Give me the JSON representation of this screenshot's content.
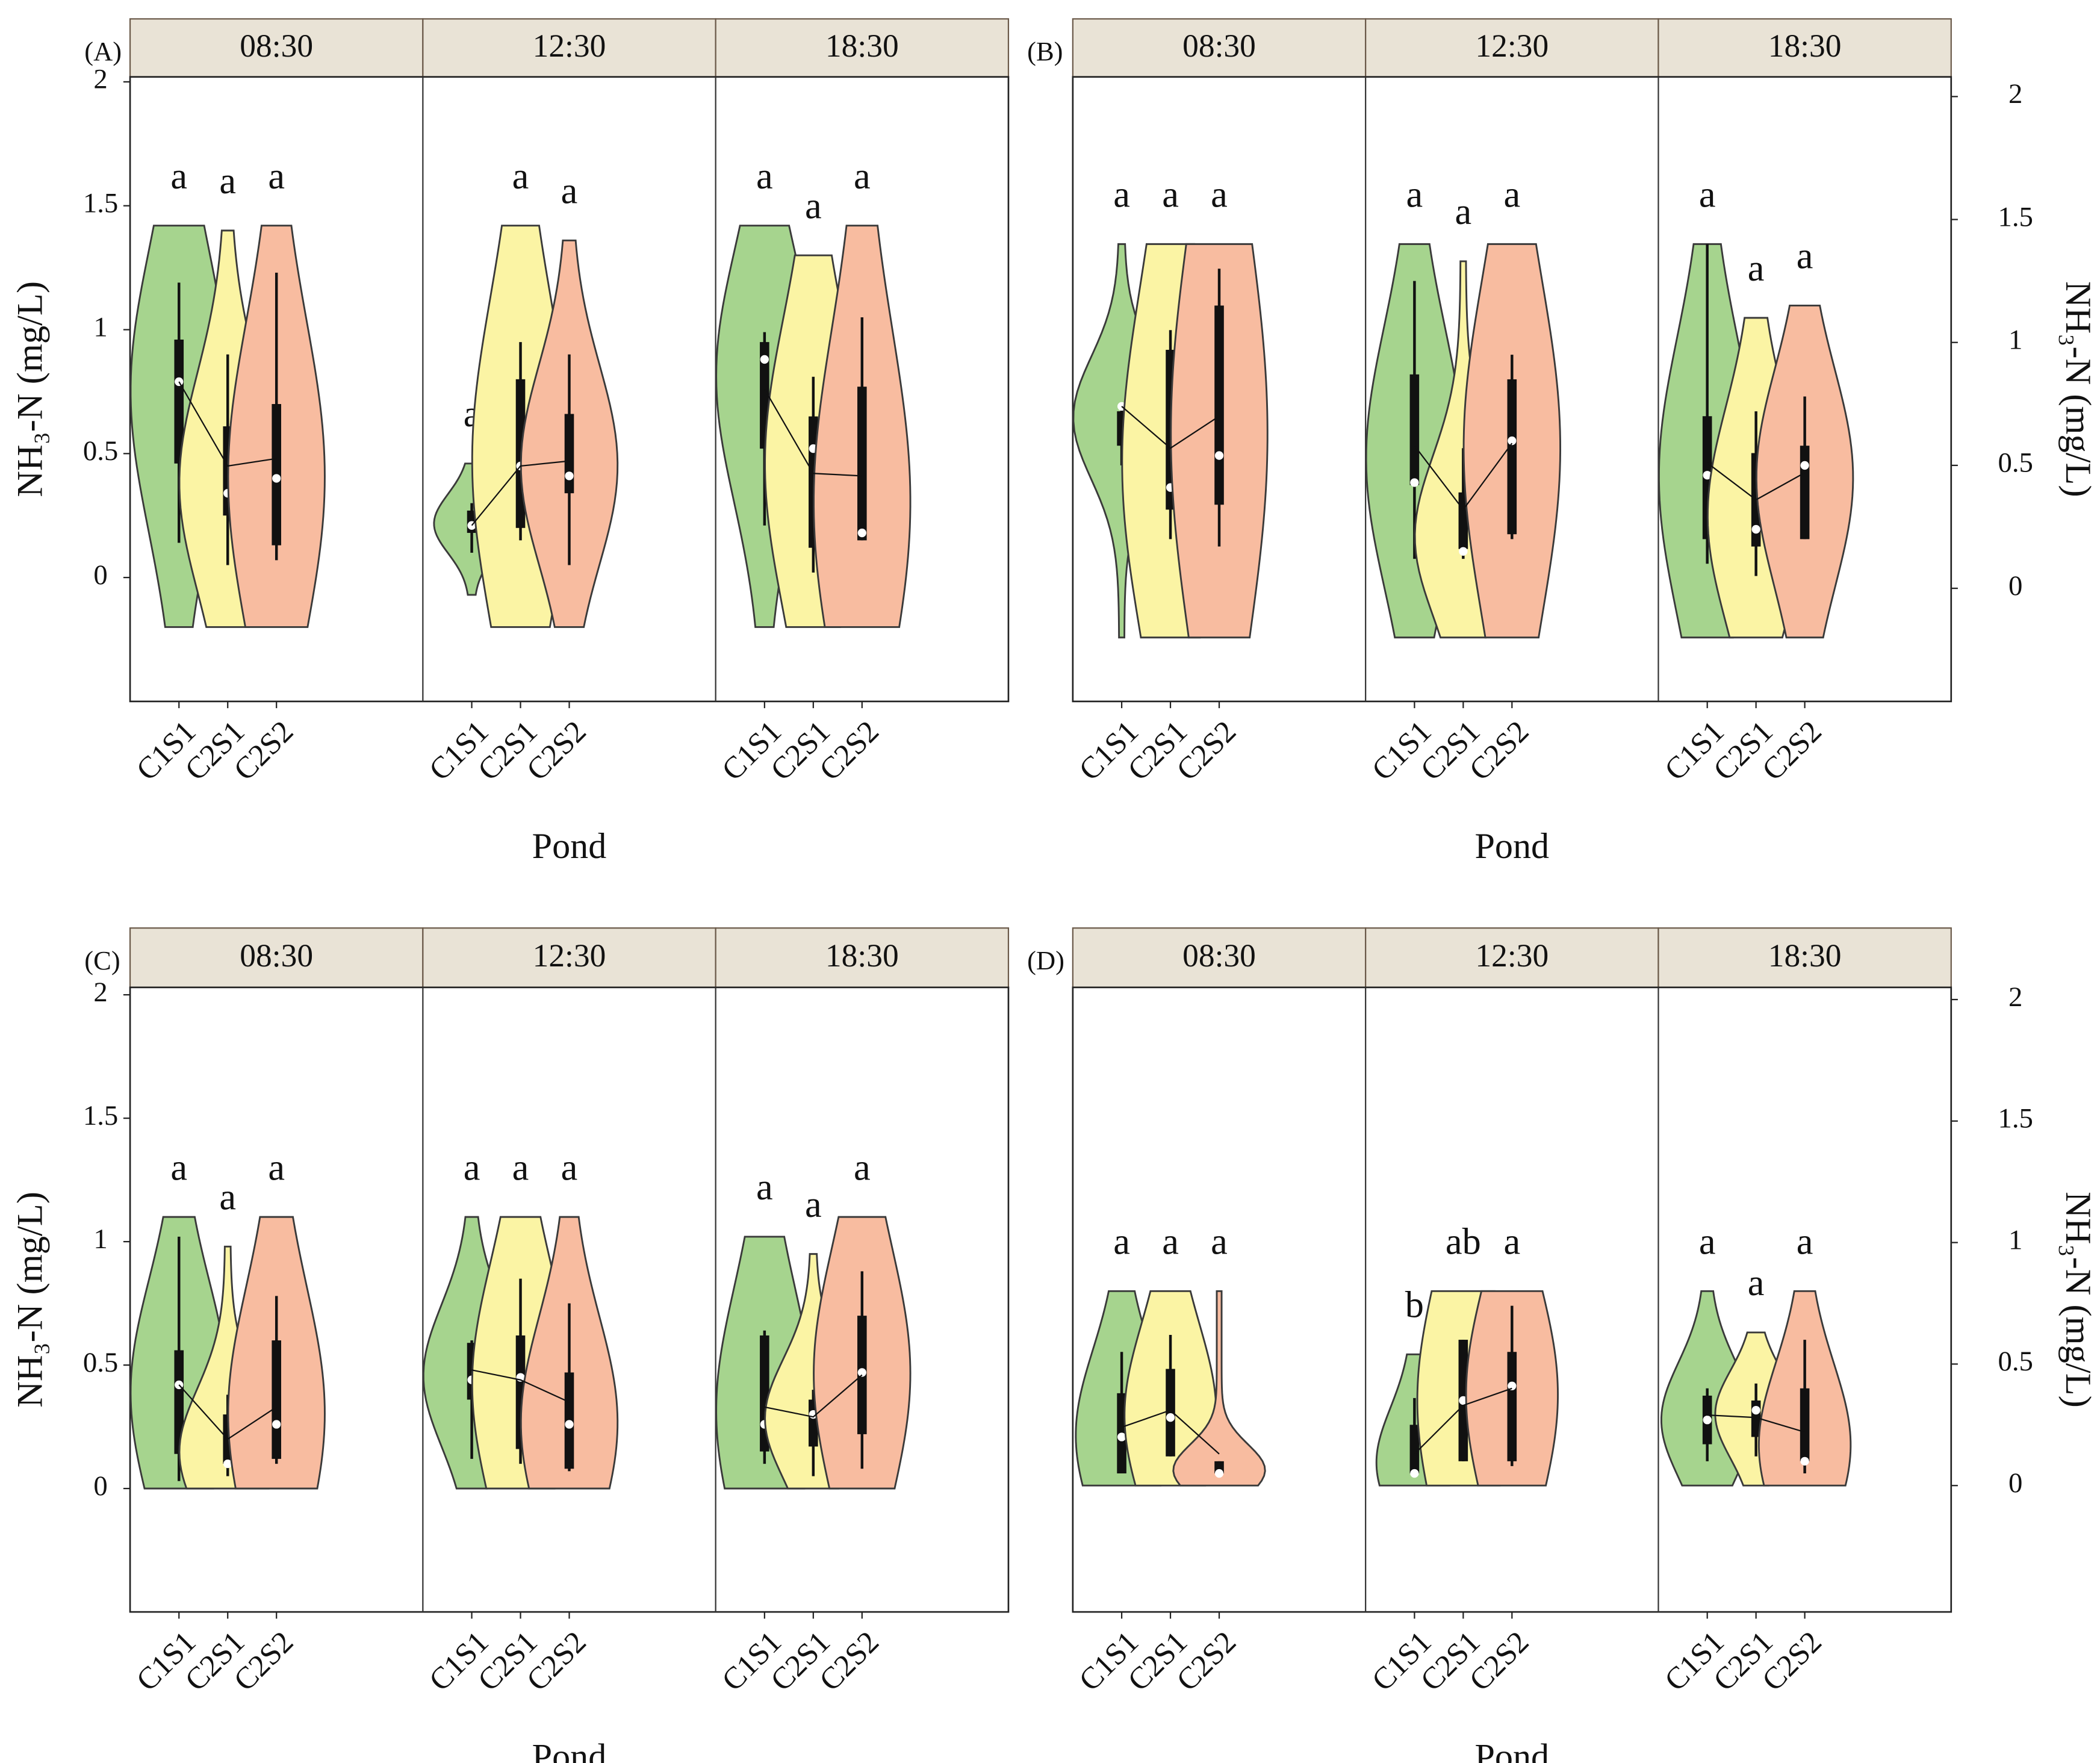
{
  "chart_data": [
    {
      "type": "violin",
      "panel_label": "(A)",
      "xlabel": "Pond",
      "ylabel": "NH₃-N (mg/L)",
      "y_axis_side": "left",
      "categories": [
        "C1S1",
        "C2S1",
        "C2S2"
      ],
      "colors": [
        "#a6d48e",
        "#fbf4a4",
        "#f8bca0"
      ],
      "ylim": [
        -0.5,
        2.02
      ],
      "yticks": [
        0,
        0.5,
        1,
        1.5,
        2
      ],
      "groups": [
        {
          "name": "08:30",
          "violins": [
            {
              "range": [
                -0.2,
                1.42
              ],
              "whisker": [
                0.14,
                1.19
              ],
              "box": [
                0.46,
                0.96
              ],
              "median": 0.79,
              "mean": 0.79,
              "label": "a"
            },
            {
              "range": [
                -0.2,
                1.4
              ],
              "whisker": [
                0.05,
                0.9
              ],
              "box": [
                0.25,
                0.61
              ],
              "median": 0.34,
              "mean": 0.45,
              "label": "a"
            },
            {
              "range": [
                -0.2,
                1.42
              ],
              "whisker": [
                0.07,
                1.23
              ],
              "box": [
                0.13,
                0.7
              ],
              "median": 0.4,
              "mean": 0.48,
              "label": "a"
            }
          ]
        },
        {
          "name": "12:30",
          "violins": [
            {
              "range": [
                -0.07,
                0.46
              ],
              "whisker": [
                0.1,
                0.3
              ],
              "box": [
                0.18,
                0.27
              ],
              "median": 0.21,
              "mean": 0.21,
              "label": "a"
            },
            {
              "range": [
                -0.2,
                1.42
              ],
              "whisker": [
                0.15,
                0.95
              ],
              "box": [
                0.2,
                0.8
              ],
              "median": 0.45,
              "mean": 0.45,
              "label": "a"
            },
            {
              "range": [
                -0.2,
                1.36
              ],
              "whisker": [
                0.05,
                0.9
              ],
              "box": [
                0.34,
                0.66
              ],
              "median": 0.41,
              "mean": 0.47,
              "label": "a"
            }
          ]
        },
        {
          "name": "18:30",
          "violins": [
            {
              "range": [
                -0.2,
                1.42
              ],
              "whisker": [
                0.21,
                0.99
              ],
              "box": [
                0.52,
                0.95
              ],
              "median": 0.88,
              "mean": 0.76,
              "label": "a"
            },
            {
              "range": [
                -0.2,
                1.3
              ],
              "whisker": [
                0.02,
                0.81
              ],
              "box": [
                0.12,
                0.65
              ],
              "median": 0.52,
              "mean": 0.42,
              "label": "a"
            },
            {
              "range": [
                -0.2,
                1.42
              ],
              "whisker": [
                0.15,
                1.05
              ],
              "box": [
                0.15,
                0.77
              ],
              "median": 0.18,
              "mean": 0.41,
              "label": "a"
            }
          ]
        }
      ]
    },
    {
      "type": "violin",
      "panel_label": "(B)",
      "xlabel": "Pond",
      "ylabel": "NH₃-N (mg/L)",
      "y_axis_side": "right",
      "categories": [
        "C1S1",
        "C2S1",
        "C2S2"
      ],
      "colors": [
        "#a6d48e",
        "#fbf4a4",
        "#f8bca0"
      ],
      "ylim": [
        -0.46,
        2.08
      ],
      "yticks": [
        0,
        0.5,
        1,
        1.5,
        2
      ],
      "groups": [
        {
          "name": "08:30",
          "violins": [
            {
              "range": [
                -0.2,
                1.4
              ],
              "whisker": [
                0.5,
                0.74
              ],
              "box": [
                0.58,
                0.72
              ],
              "median": 0.74,
              "mean": 0.74,
              "label": "a"
            },
            {
              "range": [
                -0.2,
                1.4
              ],
              "whisker": [
                0.2,
                1.05
              ],
              "box": [
                0.32,
                0.97
              ],
              "median": 0.41,
              "mean": 0.57,
              "label": "a"
            },
            {
              "range": [
                -0.2,
                1.4
              ],
              "whisker": [
                0.17,
                1.3
              ],
              "box": [
                0.34,
                1.15
              ],
              "median": 0.54,
              "mean": 0.7,
              "label": "a"
            }
          ]
        },
        {
          "name": "12:30",
          "violins": [
            {
              "range": [
                -0.2,
                1.4
              ],
              "whisker": [
                0.12,
                1.25
              ],
              "box": [
                0.42,
                0.87
              ],
              "median": 0.43,
              "mean": 0.58,
              "label": "a"
            },
            {
              "range": [
                -0.2,
                1.33
              ],
              "whisker": [
                0.12,
                0.57
              ],
              "box": [
                0.16,
                0.39
              ],
              "median": 0.15,
              "mean": 0.32,
              "label": "a"
            },
            {
              "range": [
                -0.2,
                1.4
              ],
              "whisker": [
                0.2,
                0.95
              ],
              "box": [
                0.22,
                0.85
              ],
              "median": 0.6,
              "mean": 0.59,
              "label": "a"
            }
          ]
        },
        {
          "name": "18:30",
          "violins": [
            {
              "range": [
                -0.2,
                1.4
              ],
              "whisker": [
                0.1,
                1.4
              ],
              "box": [
                0.2,
                0.7
              ],
              "median": 0.46,
              "mean": 0.51,
              "label": "a"
            },
            {
              "range": [
                -0.2,
                1.1
              ],
              "whisker": [
                0.05,
                0.72
              ],
              "box": [
                0.17,
                0.55
              ],
              "median": 0.24,
              "mean": 0.36,
              "label": "a"
            },
            {
              "range": [
                -0.2,
                1.15
              ],
              "whisker": [
                0.2,
                0.78
              ],
              "box": [
                0.2,
                0.58
              ],
              "median": 0.5,
              "mean": 0.47,
              "label": "a"
            }
          ]
        }
      ]
    },
    {
      "type": "violin",
      "panel_label": "(C)",
      "xlabel": "Pond",
      "ylabel": "NH₃-N (mg/L)",
      "y_axis_side": "left",
      "categories": [
        "C1S1",
        "C2S1",
        "C2S2"
      ],
      "colors": [
        "#a6d48e",
        "#fbf4a4",
        "#f8bca0"
      ],
      "ylim": [
        -0.5,
        2.03
      ],
      "yticks": [
        0,
        0.5,
        1,
        1.5,
        2
      ],
      "groups": [
        {
          "name": "08:30",
          "violins": [
            {
              "range": [
                0,
                1.1
              ],
              "whisker": [
                0.03,
                1.02
              ],
              "box": [
                0.14,
                0.56
              ],
              "median": 0.42,
              "mean": 0.42,
              "label": "a"
            },
            {
              "range": [
                0,
                0.98
              ],
              "whisker": [
                0.05,
                0.38
              ],
              "box": [
                0.1,
                0.3
              ],
              "median": 0.1,
              "mean": 0.2,
              "label": "a"
            },
            {
              "range": [
                0,
                1.1
              ],
              "whisker": [
                0.1,
                0.78
              ],
              "box": [
                0.12,
                0.6
              ],
              "median": 0.26,
              "mean": 0.33,
              "label": "a"
            }
          ]
        },
        {
          "name": "12:30",
          "violins": [
            {
              "range": [
                0,
                1.1
              ],
              "whisker": [
                0.12,
                0.6
              ],
              "box": [
                0.36,
                0.59
              ],
              "median": 0.44,
              "mean": 0.48,
              "label": "a"
            },
            {
              "range": [
                0,
                1.1
              ],
              "whisker": [
                0.1,
                0.85
              ],
              "box": [
                0.16,
                0.62
              ],
              "median": 0.45,
              "mean": 0.44,
              "label": "a"
            },
            {
              "range": [
                0,
                1.1
              ],
              "whisker": [
                0.07,
                0.75
              ],
              "box": [
                0.08,
                0.47
              ],
              "median": 0.26,
              "mean": 0.35,
              "label": "a"
            }
          ]
        },
        {
          "name": "18:30",
          "violins": [
            {
              "range": [
                0,
                1.02
              ],
              "whisker": [
                0.1,
                0.64
              ],
              "box": [
                0.15,
                0.62
              ],
              "median": 0.26,
              "mean": 0.33,
              "label": "a"
            },
            {
              "range": [
                0,
                0.95
              ],
              "whisker": [
                0.05,
                0.4
              ],
              "box": [
                0.17,
                0.36
              ],
              "median": 0.3,
              "mean": 0.29,
              "label": "a"
            },
            {
              "range": [
                0,
                1.1
              ],
              "whisker": [
                0.08,
                0.88
              ],
              "box": [
                0.22,
                0.7
              ],
              "median": 0.47,
              "mean": 0.46,
              "label": "a"
            }
          ]
        }
      ]
    },
    {
      "type": "violin",
      "panel_label": "(D)",
      "xlabel": "Pond",
      "ylabel": "NH₃-N (mg/L)",
      "y_axis_side": "right",
      "categories": [
        "C1S1",
        "C2S1",
        "C2S2"
      ],
      "colors": [
        "#a6d48e",
        "#fbf4a4",
        "#f8bca0"
      ],
      "ylim": [
        -0.52,
        2.05
      ],
      "yticks": [
        0,
        0.5,
        1,
        1.5,
        2
      ],
      "groups": [
        {
          "name": "08:30",
          "violins": [
            {
              "range": [
                0,
                0.8
              ],
              "whisker": [
                0.05,
                0.55
              ],
              "box": [
                0.05,
                0.38
              ],
              "median": 0.2,
              "mean": 0.24,
              "label": "a"
            },
            {
              "range": [
                0,
                0.8
              ],
              "whisker": [
                0.12,
                0.62
              ],
              "box": [
                0.12,
                0.48
              ],
              "median": 0.28,
              "mean": 0.31,
              "label": "a"
            },
            {
              "range": [
                0,
                0.8
              ],
              "whisker": [
                0.04,
                0.1
              ],
              "box": [
                0.05,
                0.1
              ],
              "median": 0.05,
              "mean": 0.13,
              "label": "a"
            }
          ]
        },
        {
          "name": "12:30",
          "violins": [
            {
              "range": [
                0,
                0.54
              ],
              "whisker": [
                0.04,
                0.36
              ],
              "box": [
                0.05,
                0.25
              ],
              "median": 0.05,
              "mean": 0.13,
              "label": "b"
            },
            {
              "range": [
                0,
                0.8
              ],
              "whisker": [
                0.1,
                0.6
              ],
              "box": [
                0.1,
                0.6
              ],
              "median": 0.35,
              "mean": 0.33,
              "label": "ab"
            },
            {
              "range": [
                0,
                0.8
              ],
              "whisker": [
                0.08,
                0.74
              ],
              "box": [
                0.1,
                0.55
              ],
              "median": 0.41,
              "mean": 0.4,
              "label": "a"
            }
          ]
        },
        {
          "name": "18:30",
          "violins": [
            {
              "range": [
                0,
                0.8
              ],
              "whisker": [
                0.1,
                0.4
              ],
              "box": [
                0.17,
                0.37
              ],
              "median": 0.27,
              "mean": 0.29,
              "label": "a"
            },
            {
              "range": [
                0,
                0.63
              ],
              "whisker": [
                0.12,
                0.42
              ],
              "box": [
                0.2,
                0.35
              ],
              "median": 0.31,
              "mean": 0.28,
              "label": "a"
            },
            {
              "range": [
                0,
                0.8
              ],
              "whisker": [
                0.05,
                0.6
              ],
              "box": [
                0.1,
                0.4
              ],
              "median": 0.1,
              "mean": 0.22,
              "label": "a"
            }
          ]
        }
      ]
    }
  ]
}
